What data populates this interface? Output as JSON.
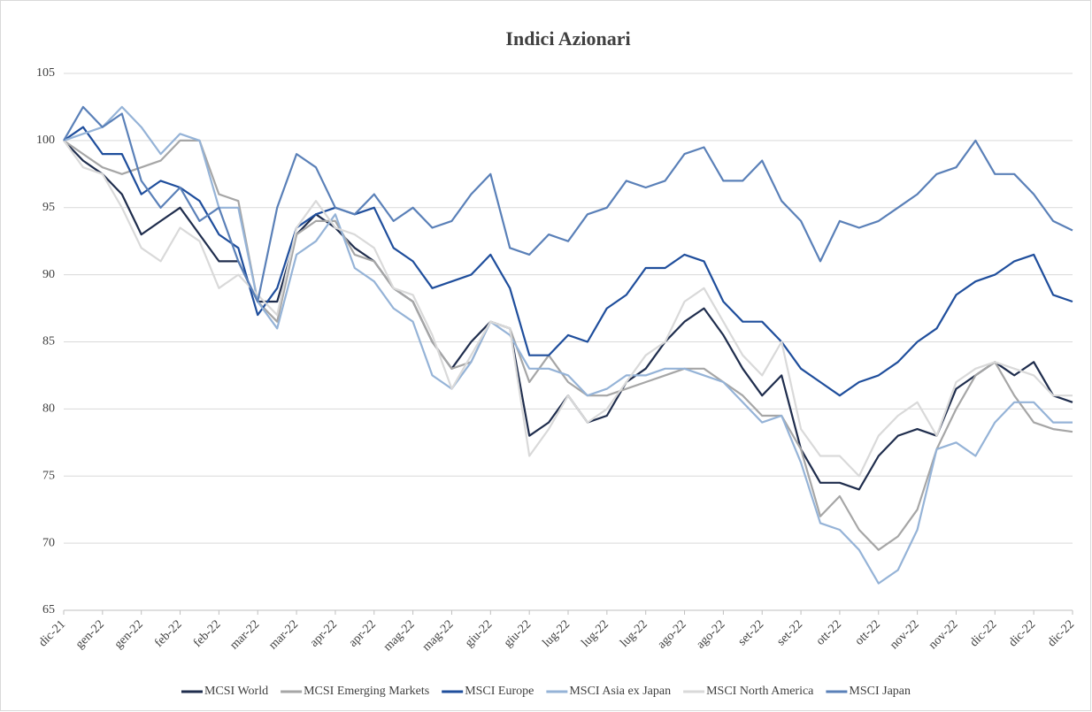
{
  "chart_data": {
    "type": "line",
    "title": "Indici Azionari",
    "categories": [
      "dic-21",
      null,
      "gen-22",
      null,
      "gen-22",
      null,
      "feb-22",
      null,
      "feb-22",
      null,
      "mar-22",
      null,
      "mar-22",
      null,
      "apr-22",
      null,
      "apr-22",
      null,
      "mag-22",
      null,
      "mag-22",
      null,
      "giu-22",
      null,
      "giu-22",
      null,
      "lug-22",
      null,
      "lug-22",
      null,
      "lug-22",
      null,
      "ago-22",
      null,
      "ago-22",
      null,
      "set-22",
      null,
      "set-22",
      null,
      "ott-22",
      null,
      "ott-22",
      null,
      "nov-22",
      null,
      "nov-22",
      null,
      "dic-22",
      null,
      "dic-22",
      null,
      "dic-22"
    ],
    "series": [
      {
        "name": "MCSI World",
        "color": "#1f2d4d",
        "values": [
          100,
          98.5,
          97.5,
          96,
          93,
          94,
          95,
          93,
          91,
          91,
          88,
          88,
          93,
          94.5,
          93.5,
          92,
          91,
          89,
          88,
          85,
          83,
          85,
          86.5,
          86,
          78,
          79,
          81,
          79,
          79.5,
          82,
          83,
          85,
          86.5,
          87.5,
          85.5,
          83,
          81,
          82.5,
          77,
          74.5,
          74.5,
          74,
          76.5,
          78,
          78.5,
          78,
          81.5,
          82.5,
          83.5,
          82.5,
          83.5,
          81,
          80.5
        ]
      },
      {
        "name": "MCSI Emerging Markets",
        "color": "#a6a6a6",
        "values": [
          100,
          99,
          98,
          97.5,
          98,
          98.5,
          100,
          100,
          96,
          95.5,
          88,
          86.5,
          93,
          94,
          94,
          91.5,
          91,
          89,
          88,
          85,
          83,
          83.5,
          86.5,
          86,
          82,
          84,
          82,
          81,
          81,
          81.5,
          82,
          82.5,
          83,
          83,
          82,
          81,
          79.5,
          79.5,
          77,
          72,
          73.5,
          71,
          69.5,
          70.5,
          72.5,
          77,
          80,
          82.5,
          83.5,
          81,
          79,
          78.5,
          78.3
        ]
      },
      {
        "name": "MSCI Europe",
        "color": "#1f4e9c",
        "values": [
          100,
          101,
          99,
          99,
          96,
          97,
          96.5,
          95.5,
          93,
          92,
          87,
          89,
          93.5,
          94.5,
          95,
          94.5,
          95,
          92,
          91,
          89,
          89.5,
          90,
          91.5,
          89,
          84,
          84,
          85.5,
          85,
          87.5,
          88.5,
          90.5,
          90.5,
          91.5,
          91,
          88,
          86.5,
          86.5,
          85,
          83,
          82,
          81,
          82,
          82.5,
          83.5,
          85,
          86,
          88.5,
          89.5,
          90,
          91,
          91.5,
          88.5,
          88
        ]
      },
      {
        "name": "MSCI Asia ex Japan",
        "color": "#95b3d7",
        "values": [
          100,
          100.5,
          101,
          102.5,
          101,
          99,
          100.5,
          100,
          95,
          95,
          88,
          86,
          91.5,
          92.5,
          94.5,
          90.5,
          89.5,
          87.5,
          86.5,
          82.5,
          81.5,
          83.5,
          86.5,
          85.5,
          83,
          83,
          82.5,
          81,
          81.5,
          82.5,
          82.5,
          83,
          83,
          82.5,
          82,
          80.5,
          79,
          79.5,
          76,
          71.5,
          71,
          69.5,
          67,
          68,
          71,
          77,
          77.5,
          76.5,
          79,
          80.5,
          80.5,
          79,
          79
        ]
      },
      {
        "name": "MSCI North America",
        "color": "#d9d9d9",
        "values": [
          100,
          98,
          97.5,
          95,
          92,
          91,
          93.5,
          92.5,
          89,
          90,
          88.5,
          87,
          93.5,
          95.5,
          93.5,
          93,
          92,
          89,
          88.5,
          85.5,
          81.5,
          84,
          86.5,
          86,
          76.5,
          78.5,
          81,
          79,
          80,
          82,
          84,
          85,
          88,
          89,
          86.5,
          84,
          82.5,
          85,
          78.5,
          76.5,
          76.5,
          75,
          78,
          79.5,
          80.5,
          78,
          82,
          83,
          83.5,
          83,
          82.5,
          81,
          81
        ]
      },
      {
        "name": "MSCI Japan",
        "color": "#5a80b8",
        "values": [
          100,
          102.5,
          101,
          102,
          97,
          95,
          96.5,
          94,
          95,
          91,
          88,
          95,
          99,
          98,
          95,
          94.5,
          96,
          94,
          95,
          93.5,
          94,
          96,
          97.5,
          92,
          91.5,
          93,
          92.5,
          94.5,
          95,
          97,
          96.5,
          97,
          99,
          99.5,
          97,
          97,
          98.5,
          95.5,
          94,
          91,
          94,
          93.5,
          94,
          95,
          96,
          97.5,
          98,
          100,
          97.5,
          97.5,
          96,
          94,
          93.3
        ]
      }
    ],
    "ylim": [
      65,
      105
    ],
    "yticks": [
      65,
      70,
      75,
      80,
      85,
      90,
      95,
      100,
      105
    ],
    "grid": true,
    "legend": "bottom"
  }
}
